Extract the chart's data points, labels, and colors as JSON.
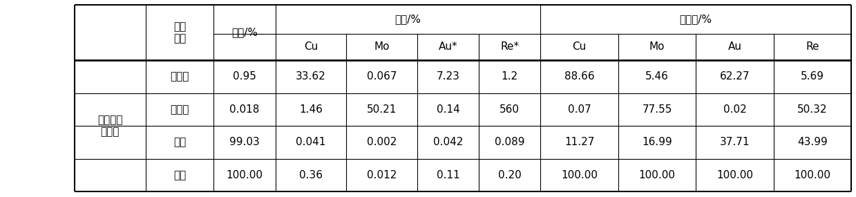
{
  "col_header_row1": [
    "产品\n名称",
    "产率/%",
    "品位/%",
    "",
    "",
    "",
    "回收率/%",
    "",
    "",
    ""
  ],
  "col_header_row2": [
    "",
    "",
    "Cu",
    "Mo",
    "Au*",
    "Re*",
    "Cu",
    "Mo",
    "Au",
    "Re"
  ],
  "rows": [
    [
      "铜精矿",
      "0.95",
      "33.62",
      "0.067",
      "7.23",
      "1.2",
      "88.66",
      "5.46",
      "62.27",
      "5.69"
    ],
    [
      "钼精矿",
      "0.018",
      "1.46",
      "50.21",
      "0.14",
      "560",
      "0.07",
      "77.55",
      "0.02",
      "50.32"
    ],
    [
      "尾矿",
      "99.03",
      "0.041",
      "0.002",
      "0.042",
      "0.089",
      "11.27",
      "16.99",
      "37.71",
      "43.99"
    ],
    [
      "原矿",
      "100.00",
      "0.36",
      "0.012",
      "0.11",
      "0.20",
      "100.00",
      "100.00",
      "100.00",
      "100.00"
    ]
  ],
  "row_group_label": "具体实施\n方式一",
  "background_color": "#ffffff",
  "text_color": "#000000",
  "line_color": "#000000",
  "font_size": 11,
  "header_font_size": 11
}
